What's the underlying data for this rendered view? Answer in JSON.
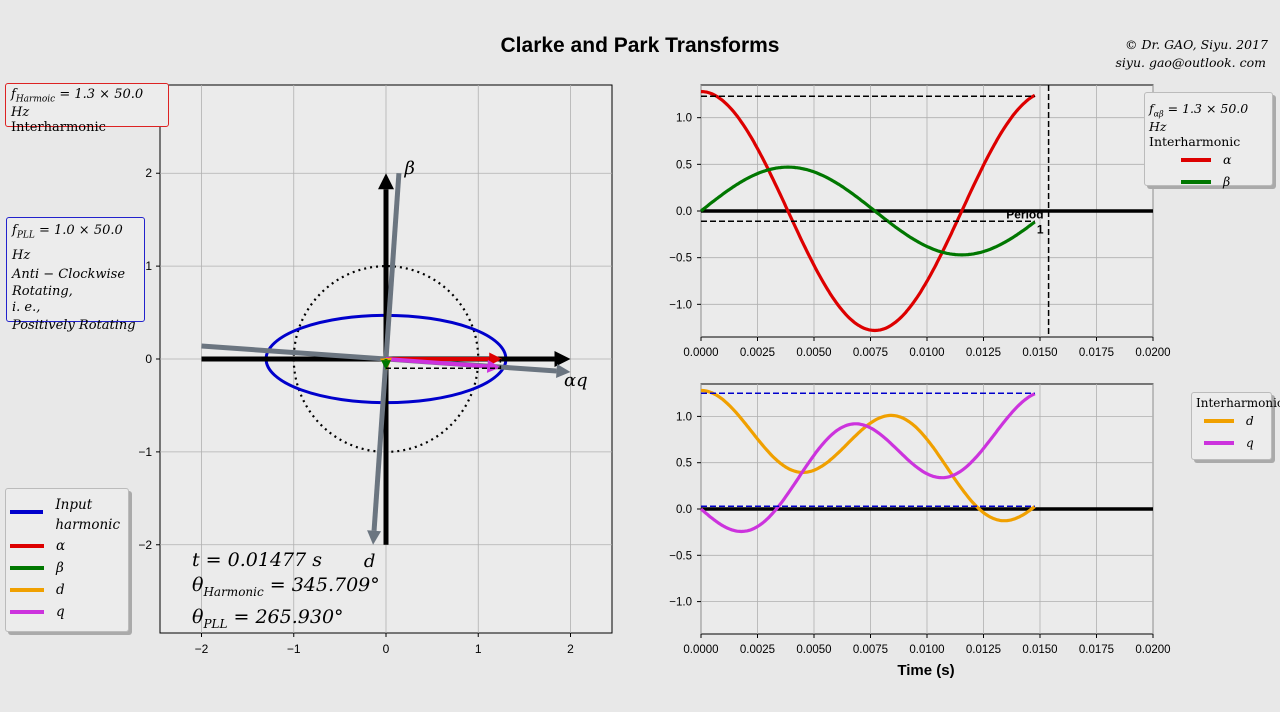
{
  "title": "Clarke and Park Transforms",
  "credit": {
    "line1": "© Dr. GAO,  Siyu. 2017",
    "line2": "siyu. gao@outlook. com"
  },
  "info_harmonic": {
    "line1": "f",
    "sub": "Harmoic",
    "rest": " =  1.3 × 50.0  Hz",
    "line2": "Interharmonic"
  },
  "info_pll": {
    "line1": "f",
    "sub": "PLL",
    "rest": " = 1.0 × 50.0  Hz",
    "lines": [
      "Anti − Clockwise",
      "Rotating,",
      "i. e.,",
      "Positively Rotating"
    ]
  },
  "phasor_legend": [
    {
      "label": "Input harmonic",
      "color": "#0000cc"
    },
    {
      "label": "α",
      "color": "#dd0000"
    },
    {
      "label": "β",
      "color": "#007700"
    },
    {
      "label": "d",
      "color": "#f0a000"
    },
    {
      "label": "q",
      "color": "#cc33dd"
    }
  ],
  "readouts": {
    "t": "t = 0.01477  s",
    "theta_h_pre": "θ",
    "theta_h_sub": "Harmonic",
    "theta_h_post": " = 345.709°",
    "theta_p_pre": "θ",
    "theta_p_sub": "PLL",
    "theta_p_post": " = 265.930°"
  },
  "top_legend": {
    "line1": "f",
    "sub": "αβ",
    "rest": " = 1.3 × 50.0  Hz",
    "title": "Interharmonic",
    "items": [
      {
        "label": "α",
        "color": "#dd0000"
      },
      {
        "label": "β",
        "color": "#007700"
      }
    ]
  },
  "bottom_legend": {
    "title": "Interharmonic",
    "items": [
      {
        "label": "d",
        "color": "#f0a000"
      },
      {
        "label": "q",
        "color": "#cc33dd"
      }
    ]
  },
  "period_label": "Period\n1",
  "x_axis_label": "Time (s)",
  "chart_data": [
    {
      "type": "line",
      "name": "phasor-plane",
      "xlim": [
        -2.45,
        2.45
      ],
      "ylim": [
        -2.95,
        2.95
      ],
      "xticks": [
        -2,
        -1,
        0,
        1,
        2
      ],
      "yticks": [
        -2,
        -1,
        0,
        1,
        2
      ],
      "grid": true,
      "ellipse": {
        "rx": 1.3,
        "ry": 0.47,
        "color": "#0000cc"
      },
      "unit_circle": {
        "r": 1.0,
        "style": "dotted"
      },
      "axes_labels": {
        "beta": "β",
        "alpha_q": "αq",
        "d": "d"
      },
      "vectors": [
        {
          "name": "alpha-axis",
          "from": [
            -2.0,
            0
          ],
          "to": [
            2.0,
            0
          ],
          "color": "#000000"
        },
        {
          "name": "beta-axis",
          "from": [
            0,
            -2.0
          ],
          "to": [
            0,
            2.0
          ],
          "color": "#000000"
        },
        {
          "name": "q-axis",
          "from": [
            -2.0,
            0.14
          ],
          "to": [
            2.0,
            -0.14
          ],
          "color": "#6b7580"
        },
        {
          "name": "d-axis",
          "from": [
            0.14,
            2.0
          ],
          "to": [
            -0.14,
            -2.0
          ],
          "color": "#6b7580"
        },
        {
          "name": "alpha-vector",
          "from": [
            0,
            0
          ],
          "to": [
            1.26,
            0
          ],
          "color": "#dd0000"
        },
        {
          "name": "q-vector",
          "from": [
            0,
            0
          ],
          "to": [
            1.24,
            -0.09
          ],
          "color": "#cc33dd"
        },
        {
          "name": "d-vector",
          "from": [
            0,
            0
          ],
          "to": [
            0.01,
            -0.12
          ],
          "color": "#f0a000"
        },
        {
          "name": "beta-vector",
          "from": [
            0,
            0
          ],
          "to": [
            0,
            -0.12
          ],
          "color": "#007700"
        }
      ]
    },
    {
      "type": "line",
      "name": "alpha-beta-time",
      "xlim": [
        0,
        0.02
      ],
      "ylim": [
        -1.35,
        1.35
      ],
      "xticks": [
        0.0,
        0.0025,
        0.005,
        0.0075,
        0.01,
        0.0125,
        0.015,
        0.0175,
        0.02
      ],
      "xticklabels": [
        "0.0000",
        "0.0025",
        "0.0050",
        "0.0075",
        "0.0100",
        "0.0125",
        "0.0150",
        "0.0175",
        "0.0200"
      ],
      "yticks": [
        -1.0,
        -0.5,
        0.0,
        0.5,
        1.0
      ],
      "yticklabels": [
        "−1.0",
        "−0.5",
        "0.0",
        "0.5",
        "1.0"
      ],
      "grid": true,
      "t_end": 0.01477,
      "series": [
        {
          "name": "α",
          "color": "#dd0000",
          "amplitude": 1.28,
          "freq": 65,
          "phase": "cos"
        },
        {
          "name": "β",
          "color": "#007700",
          "amplitude": 0.47,
          "freq": 65,
          "phase": "sin"
        }
      ],
      "guides": {
        "upper": 1.23,
        "lower": -0.11,
        "period_t": 0.01538
      }
    },
    {
      "type": "line",
      "name": "d-q-time",
      "xlim": [
        0,
        0.02
      ],
      "ylim": [
        -1.35,
        1.35
      ],
      "xticks": [
        0.0,
        0.0025,
        0.005,
        0.0075,
        0.01,
        0.0125,
        0.015,
        0.0175,
        0.02
      ],
      "xticklabels": [
        "0.0000",
        "0.0025",
        "0.0050",
        "0.0075",
        "0.0100",
        "0.0125",
        "0.0150",
        "0.0175",
        "0.0200"
      ],
      "yticks": [
        -1.0,
        -0.5,
        0.0,
        0.5,
        1.0
      ],
      "yticklabels": [
        "−1.0",
        "−0.5",
        "0.0",
        "0.5",
        "1.0"
      ],
      "grid": true,
      "t_end": 0.01477,
      "series": [
        {
          "name": "d",
          "color": "#f0a000"
        },
        {
          "name": "q",
          "color": "#cc33dd"
        }
      ],
      "guides": {
        "upper": 1.25,
        "lower": 0.03
      }
    }
  ]
}
